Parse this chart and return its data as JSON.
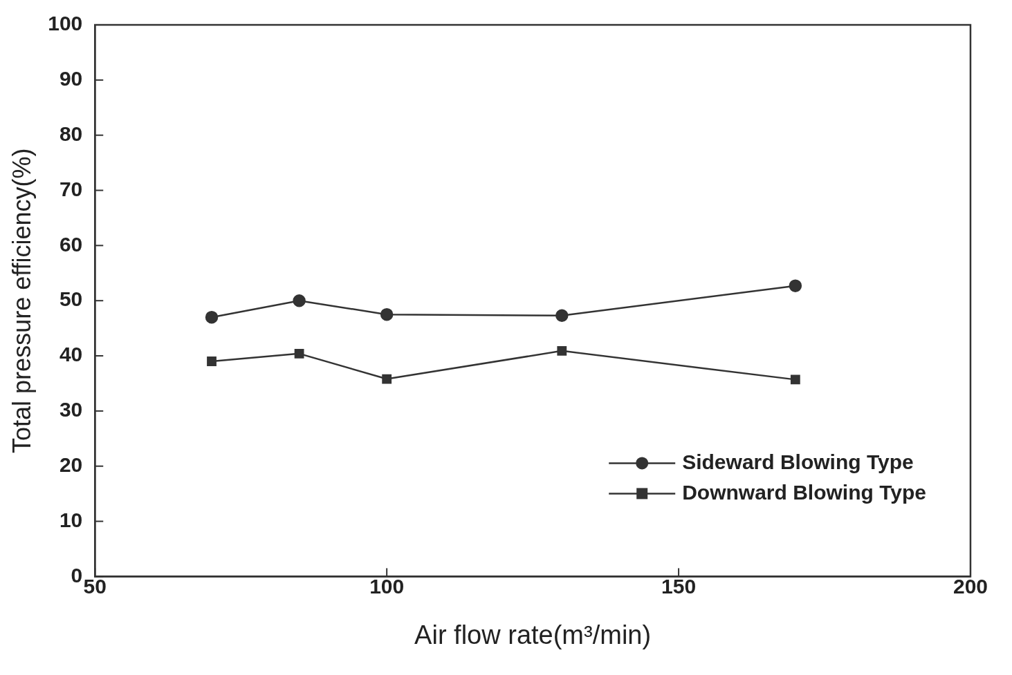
{
  "chart_data": {
    "type": "line",
    "xlabel": "Air flow rate(m³/min)",
    "ylabel": "Total pressure efficiency(%)",
    "x": [
      70,
      85,
      100,
      130,
      170
    ],
    "series": [
      {
        "name": "Sideward Blowing Type",
        "color": "#333333",
        "marker": "circle",
        "values": [
          47,
          50,
          47.5,
          47.3,
          52.7
        ]
      },
      {
        "name": "Downward Blowing Type",
        "color": "#333333",
        "marker": "square",
        "values": [
          39,
          40.4,
          35.8,
          40.9,
          35.7
        ]
      }
    ],
    "xlim": [
      50,
      200
    ],
    "xticks": [
      50,
      100,
      150,
      200
    ],
    "ylim": [
      0,
      100
    ],
    "yticks": [
      0,
      10,
      20,
      30,
      40,
      50,
      60,
      70,
      80,
      90,
      100
    ],
    "grid": false,
    "legend": "bottom right",
    "line_style": "solid"
  }
}
